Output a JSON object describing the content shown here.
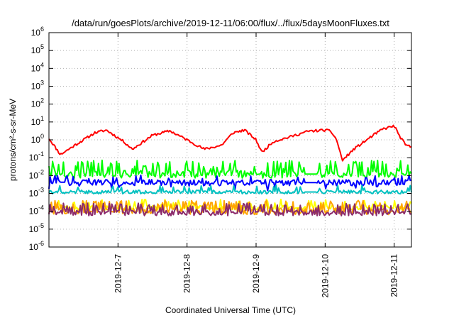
{
  "chart_data": {
    "type": "line",
    "title": "/data/run/goesPlots/archive/2019-12-11/06:00/flux/../flux/5daysMoonFluxes.txt",
    "xlabel": "Coordinated Universal Time (UTC)",
    "ylabel": "protons/cm²-s-sr-MeV",
    "y_scale": "log",
    "ylim": [
      1e-06,
      1000000.0
    ],
    "y_ticks": [
      {
        "value": 1e-06,
        "base": "10",
        "exp": "-6"
      },
      {
        "value": 1e-05,
        "base": "10",
        "exp": "-5"
      },
      {
        "value": 0.0001,
        "base": "10",
        "exp": "-4"
      },
      {
        "value": 0.001,
        "base": "10",
        "exp": "-3"
      },
      {
        "value": 0.01,
        "base": "10",
        "exp": "-2"
      },
      {
        "value": 0.1,
        "base": "10",
        "exp": "-1"
      },
      {
        "value": 1,
        "base": "10",
        "exp": "0"
      },
      {
        "value": 10,
        "base": "10",
        "exp": "1"
      },
      {
        "value": 100,
        "base": "10",
        "exp": "2"
      },
      {
        "value": 1000,
        "base": "10",
        "exp": "3"
      },
      {
        "value": 10000,
        "base": "10",
        "exp": "4"
      },
      {
        "value": 100000,
        "base": "10",
        "exp": "5"
      },
      {
        "value": 1000000,
        "base": "10",
        "exp": "6"
      }
    ],
    "xlim": [
      "2019-12-06T00:00",
      "2019-12-11T06:00"
    ],
    "x_ticks": [
      {
        "value": "2019-12-07T00:00",
        "label": "2019-12-7"
      },
      {
        "value": "2019-12-08T00:00",
        "label": "2019-12-8"
      },
      {
        "value": "2019-12-09T00:00",
        "label": "2019-12-9"
      },
      {
        "value": "2019-12-10T00:00",
        "label": "2019-12-10"
      },
      {
        "value": "2019-12-11T00:00",
        "label": "2019-12-11"
      }
    ],
    "grid": true,
    "series": [
      {
        "color": "#ff0000",
        "base": [
          [
            "2019-12-06T00:00",
            1.2
          ],
          [
            "2019-12-06T04:00",
            0.15
          ],
          [
            "2019-12-06T09:00",
            0.5
          ],
          [
            "2019-12-06T16:00",
            2.5
          ],
          [
            "2019-12-06T20:00",
            3.5
          ],
          [
            "2019-12-07T02:00",
            0.8
          ],
          [
            "2019-12-07T05:00",
            0.3
          ],
          [
            "2019-12-07T12:00",
            1.8
          ],
          [
            "2019-12-07T18:00",
            3.2
          ],
          [
            "2019-12-08T00:00",
            1.0
          ],
          [
            "2019-12-08T06:00",
            0.3
          ],
          [
            "2019-12-08T12:00",
            0.5
          ],
          [
            "2019-12-08T16:00",
            2.5
          ],
          [
            "2019-12-08T20:00",
            3.5
          ],
          [
            "2019-12-09T00:00",
            1.0
          ],
          [
            "2019-12-09T02:00",
            0.2
          ],
          [
            "2019-12-09T06:00",
            0.8
          ],
          [
            "2019-12-09T12:00",
            1.5
          ],
          [
            "2019-12-09T18:00",
            3.0
          ],
          [
            "2019-12-10T00:00",
            3.5
          ],
          [
            "2019-12-10T02:00",
            3.0
          ],
          [
            "2019-12-10T04:00",
            1.0
          ],
          [
            "2019-12-10T06:00",
            0.07
          ],
          [
            "2019-12-10T10:00",
            0.3
          ],
          [
            "2019-12-10T16:00",
            1.5
          ],
          [
            "2019-12-10T20:00",
            4.0
          ],
          [
            "2019-12-11T00:00",
            6.0
          ],
          [
            "2019-12-11T02:00",
            1.5
          ],
          [
            "2019-12-11T04:00",
            0.5
          ],
          [
            "2019-12-11T06:00",
            0.4
          ]
        ],
        "noise": 0.07,
        "seed": 11
      },
      {
        "color": "#00ff00",
        "level": 0.012,
        "noise": 0.22,
        "seed": 21,
        "spikes": {
          "prob": 0.28,
          "low": 2.0,
          "high": 6.0
        },
        "gap": [
          "2019-12-09T17:00",
          "2019-12-09T21:00"
        ]
      },
      {
        "color": "#0000ff",
        "level": 0.004,
        "noise": 0.17,
        "seed": 31,
        "spikes": {
          "prob": 0.18,
          "low": 0.35,
          "high": 2.6
        },
        "gap": [
          "2019-12-09T17:00",
          "2019-12-09T21:00"
        ]
      },
      {
        "color": "#00c0c0",
        "level": 0.0012,
        "noise": 0.1,
        "seed": 41,
        "spikes": {
          "prob": 0.12,
          "low": 1.4,
          "high": 2.4
        },
        "gap": [
          "2019-12-09T17:00",
          "2019-12-09T21:00"
        ]
      },
      {
        "color": "#ffff00",
        "level": 0.00016,
        "noise": 0.13,
        "seed": 51,
        "spikes": {
          "prob": 0.15,
          "low": 1.5,
          "high": 3.0
        }
      },
      {
        "color": "#ffa500",
        "level": 0.0001,
        "noise": 0.18,
        "seed": 61,
        "spikes": {
          "prob": 0.28,
          "low": 1.8,
          "high": 4.0
        }
      },
      {
        "color": "#8b2a6b",
        "level": 8e-05,
        "noise": 0.15,
        "seed": 71,
        "spikes": {
          "prob": 0.3,
          "low": 1.6,
          "high": 3.6
        }
      }
    ]
  }
}
